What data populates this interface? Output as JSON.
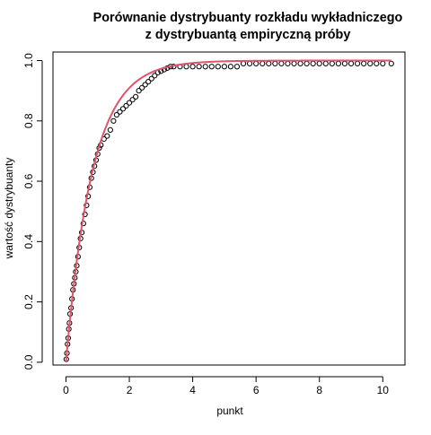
{
  "chart_data": {
    "type": "scatter",
    "title": "Porównanie dystrybuanty rozkładu wykładniczego",
    "subtitle": "z dystrybuantą empiryczną próby",
    "xlabel": "punkt",
    "ylabel": "wartość dystrybuanty",
    "xlim": [
      -0.41,
      10.7
    ],
    "ylim": [
      -0.0093,
      1.0283
    ],
    "x_ticks": [
      0,
      2,
      4,
      6,
      8,
      10
    ],
    "y_ticks": [
      0.0,
      0.2,
      0.4,
      0.6,
      0.8,
      1.0
    ],
    "x_tick_labels": [
      "0",
      "2",
      "4",
      "6",
      "8",
      "10"
    ],
    "y_tick_labels": [
      "0.0",
      "0.2",
      "0.4",
      "0.6",
      "0.8",
      "1.0"
    ],
    "grid": false,
    "legend": "none",
    "series": [
      {
        "style": "open-circles",
        "color": "#000000",
        "points": [
          [
            0.01,
            0.01
          ],
          [
            0.03,
            0.03
          ],
          [
            0.05,
            0.06
          ],
          [
            0.07,
            0.08
          ],
          [
            0.09,
            0.11
          ],
          [
            0.11,
            0.13
          ],
          [
            0.13,
            0.16
          ],
          [
            0.16,
            0.18
          ],
          [
            0.19,
            0.21
          ],
          [
            0.22,
            0.24
          ],
          [
            0.25,
            0.26
          ],
          [
            0.28,
            0.28
          ],
          [
            0.31,
            0.3
          ],
          [
            0.34,
            0.32
          ],
          [
            0.38,
            0.35
          ],
          [
            0.42,
            0.38
          ],
          [
            0.46,
            0.41
          ],
          [
            0.5,
            0.43
          ],
          [
            0.55,
            0.46
          ],
          [
            0.6,
            0.49
          ],
          [
            0.65,
            0.52
          ],
          [
            0.7,
            0.55
          ],
          [
            0.75,
            0.58
          ],
          [
            0.8,
            0.61
          ],
          [
            0.85,
            0.63
          ],
          [
            0.9,
            0.65
          ],
          [
            0.95,
            0.67
          ],
          [
            1.0,
            0.69
          ],
          [
            1.05,
            0.71
          ],
          [
            1.1,
            0.72
          ],
          [
            1.2,
            0.74
          ],
          [
            1.3,
            0.75
          ],
          [
            1.4,
            0.77
          ],
          [
            1.5,
            0.8
          ],
          [
            1.6,
            0.82
          ],
          [
            1.7,
            0.83
          ],
          [
            1.8,
            0.84
          ],
          [
            1.9,
            0.85
          ],
          [
            2.0,
            0.86
          ],
          [
            2.1,
            0.87
          ],
          [
            2.2,
            0.88
          ],
          [
            2.3,
            0.9
          ],
          [
            2.4,
            0.91
          ],
          [
            2.5,
            0.92
          ],
          [
            2.6,
            0.93
          ],
          [
            2.7,
            0.94
          ],
          [
            2.8,
            0.95
          ],
          [
            2.9,
            0.96
          ],
          [
            3.0,
            0.965
          ],
          [
            3.1,
            0.97
          ],
          [
            3.2,
            0.975
          ],
          [
            3.3,
            0.98
          ],
          [
            3.4,
            0.98
          ],
          [
            3.6,
            0.98
          ],
          [
            3.8,
            0.98
          ],
          [
            4.0,
            0.98
          ],
          [
            4.2,
            0.98
          ],
          [
            4.4,
            0.98
          ],
          [
            4.6,
            0.98
          ],
          [
            4.8,
            0.98
          ],
          [
            5.0,
            0.98
          ],
          [
            5.2,
            0.98
          ],
          [
            5.4,
            0.98
          ],
          [
            5.6,
            0.99
          ],
          [
            5.8,
            0.99
          ],
          [
            6.0,
            0.99
          ],
          [
            6.2,
            0.99
          ],
          [
            6.4,
            0.99
          ],
          [
            6.6,
            0.99
          ],
          [
            6.8,
            0.99
          ],
          [
            7.0,
            0.99
          ],
          [
            7.2,
            0.99
          ],
          [
            7.4,
            0.99
          ],
          [
            7.6,
            0.99
          ],
          [
            7.8,
            0.99
          ],
          [
            8.0,
            0.99
          ],
          [
            8.2,
            0.99
          ],
          [
            8.4,
            0.99
          ],
          [
            8.6,
            0.99
          ],
          [
            8.8,
            0.99
          ],
          [
            9.0,
            0.99
          ],
          [
            9.2,
            0.99
          ],
          [
            9.4,
            0.99
          ],
          [
            9.6,
            0.99
          ],
          [
            9.8,
            0.99
          ],
          [
            10.0,
            0.99
          ],
          [
            10.27,
            0.99
          ]
        ]
      },
      {
        "style": "line",
        "color": "#DF536B",
        "function": "exponential CDF 1 - exp(-1.2 x)",
        "rate": 1.2,
        "x_range": [
          0,
          10.27
        ]
      }
    ]
  }
}
